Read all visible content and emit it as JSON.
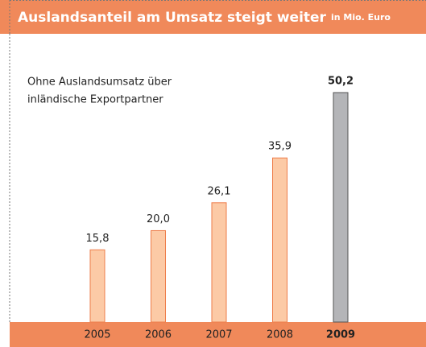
{
  "chart_data": {
    "type": "bar",
    "title": "Auslandsanteil am Umsatz steigt weiter",
    "subtitle": "in Mio. Euro",
    "annotation": [
      "Ohne Auslandsumsatz über",
      "inländische Exportpartner"
    ],
    "categories": [
      "2005",
      "2006",
      "2007",
      "2008",
      "2009"
    ],
    "values": [
      15.8,
      20.0,
      26.1,
      35.9,
      50.2
    ],
    "value_labels": [
      "15,8",
      "20,0",
      "26,1",
      "35,9",
      "50,2"
    ],
    "colors": [
      "#fccaa6",
      "#fccaa6",
      "#fccaa6",
      "#fccaa6",
      "#b4b5b8"
    ],
    "stroke_colors": [
      "#ee7d4a",
      "#ee7d4a",
      "#ee7d4a",
      "#ee7d4a",
      "#555555"
    ],
    "highlight_index": 4
  }
}
